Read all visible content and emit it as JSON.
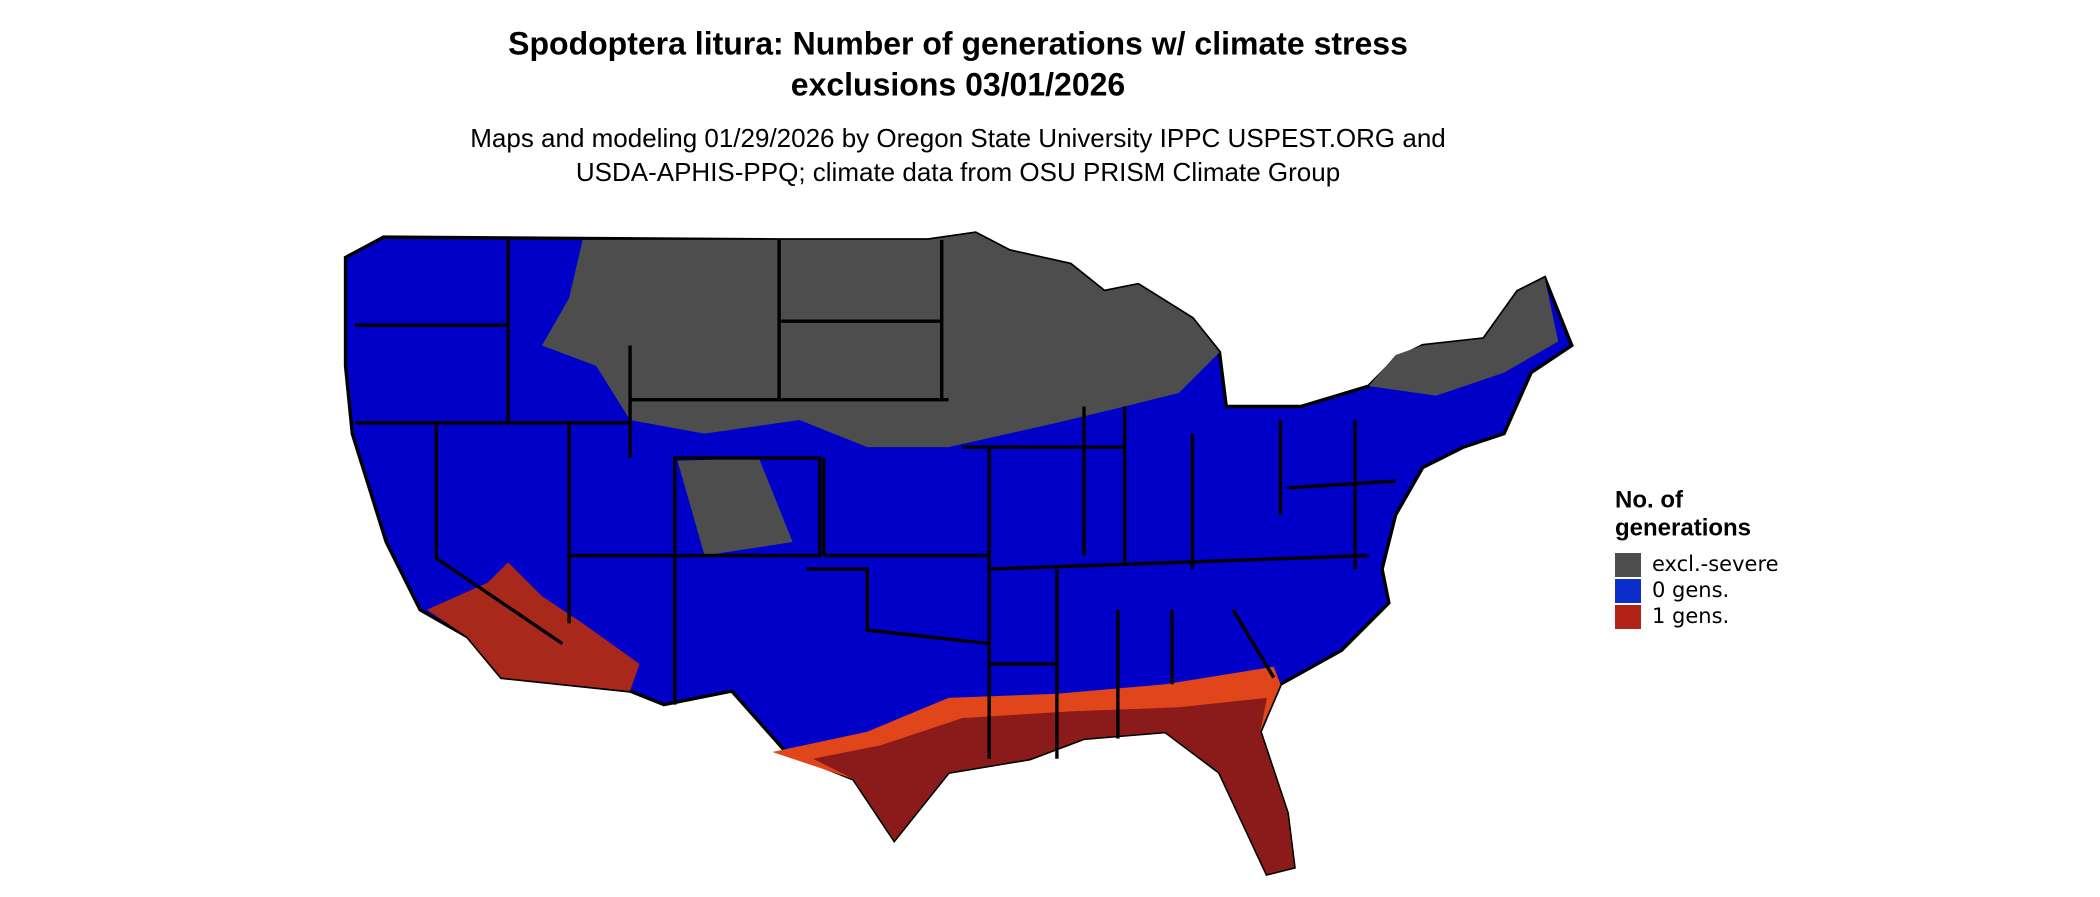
{
  "header": {
    "title_line1": "Spodoptera litura: Number of generations w/ climate stress",
    "title_line2": "exclusions 03/01/2026",
    "subtitle_line1": "Maps and modeling 01/29/2026 by Oregon State University IPPC USPEST.ORG and",
    "subtitle_line2": "USDA-APHIS-PPQ; climate data from OSU PRISM Climate Group"
  },
  "legend": {
    "title_line1": "No. of",
    "title_line2": "generations",
    "items": [
      {
        "label": "excl.-severe",
        "color": "#4d4d4d"
      },
      {
        "label": "0 gens.",
        "color": "#0a2fcc"
      },
      {
        "label": "1 gens.",
        "color": "#b22217"
      }
    ]
  }
}
